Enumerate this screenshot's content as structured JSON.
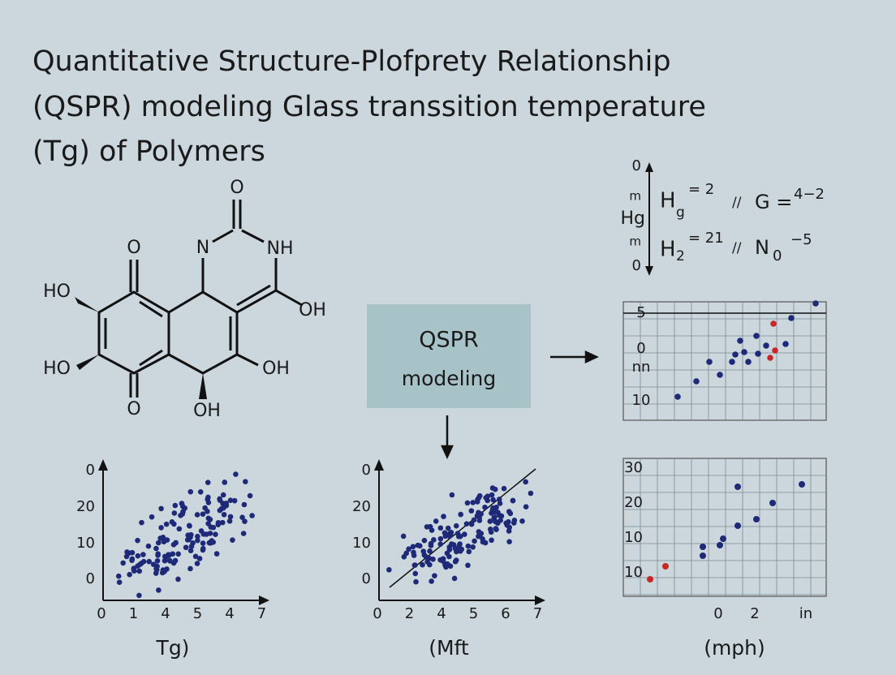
{
  "title": {
    "lines": [
      "Quantitative Structure-Plofprety Relationship",
      "(QSPR) modeling Glass transsition temperature",
      "(Tg) of Polymers"
    ]
  },
  "molecule": {
    "labels": [
      "O",
      "N",
      "NH",
      "O",
      "HO",
      "OH",
      "HO",
      "OH",
      "O",
      "OH"
    ]
  },
  "box": {
    "line1": "QSPR",
    "line2": "modeling"
  },
  "equations": {
    "axis_labels": [
      "0",
      "m",
      "Hg",
      "m",
      "0"
    ],
    "row1": {
      "left": "H",
      "left_sub": "g",
      "left_sup": "= 2",
      "sep": "//",
      "right": "G =",
      "right_sup": "4−2"
    },
    "row2": {
      "left": "H",
      "left_sub": "2",
      "left_sup": "= 21",
      "sep": "//",
      "right": "N",
      "right_sub": "0",
      "right_sup": "−5"
    }
  },
  "plots": [
    {
      "y_labels": [
        "0",
        "20",
        "10",
        "0"
      ],
      "x_labels": [
        "0",
        "1",
        "4",
        "5",
        "4",
        "7"
      ],
      "caption": "Tg)"
    },
    {
      "y_labels": [
        "0",
        "20",
        "10",
        "0"
      ],
      "x_labels": [
        "0",
        "2",
        "4",
        "5",
        "6",
        "7"
      ],
      "caption": "(Mft"
    },
    {
      "y_labels": [
        "5",
        "0",
        "nn",
        "10"
      ],
      "x_labels": []
    },
    {
      "y_labels": [
        "30",
        "20",
        "10",
        "10"
      ],
      "x_labels": [
        "0",
        "2",
        "in"
      ],
      "caption": "(mph)"
    }
  ]
}
